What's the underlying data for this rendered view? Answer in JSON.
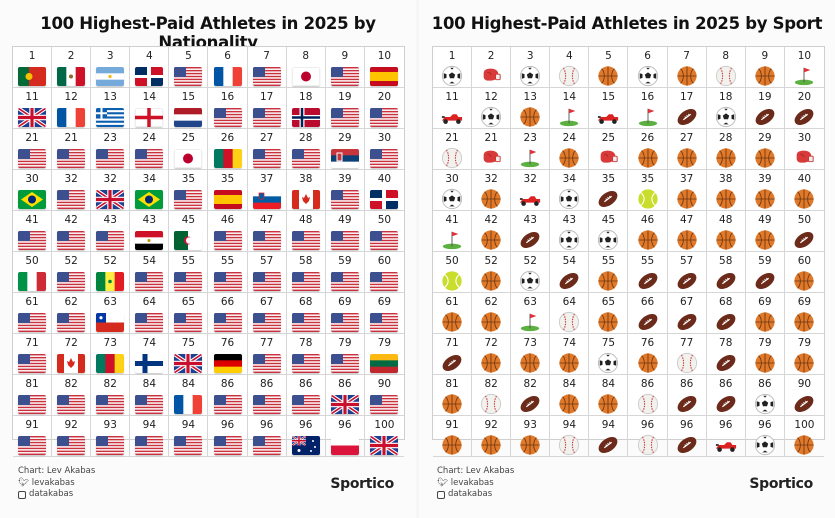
{
  "left": {
    "title": "100 Highest-Paid Athletes in 2025 by Nationality"
  },
  "right": {
    "title": "100 Highest-Paid Athletes in 2025 by Sport"
  },
  "footer": {
    "credit": "Chart: Lev Akabas",
    "twitter": "levakabas",
    "instagram": "datakabas",
    "logo": "Sportico"
  },
  "chart_data": [
    {
      "type": "table",
      "title": "100 Highest-Paid Athletes in 2025 by Nationality",
      "ranks": [
        1,
        2,
        3,
        4,
        5,
        6,
        7,
        8,
        9,
        10,
        11,
        12,
        13,
        14,
        15,
        16,
        17,
        18,
        19,
        20,
        21,
        21,
        23,
        24,
        25,
        26,
        27,
        28,
        29,
        30,
        30,
        32,
        32,
        34,
        35,
        35,
        37,
        38,
        39,
        40,
        41,
        42,
        43,
        43,
        45,
        46,
        47,
        48,
        49,
        50,
        50,
        52,
        52,
        54,
        55,
        55,
        57,
        58,
        59,
        60,
        61,
        62,
        63,
        64,
        65,
        66,
        67,
        68,
        69,
        69,
        71,
        72,
        73,
        74,
        75,
        76,
        77,
        78,
        79,
        79,
        81,
        82,
        82,
        84,
        84,
        86,
        86,
        86,
        86,
        90,
        91,
        92,
        93,
        94,
        94,
        96,
        96,
        96,
        96,
        100
      ],
      "nationality": [
        "PT",
        "MX",
        "AR",
        "DO",
        "US",
        "FR",
        "US",
        "JP",
        "US",
        "ES",
        "GB",
        "FR",
        "GR",
        "EN",
        "NL",
        "US",
        "US",
        "NO",
        "US",
        "US",
        "US",
        "US",
        "US",
        "US",
        "JP",
        "CM",
        "US",
        "US",
        "RS",
        "US",
        "BR",
        "US",
        "GB",
        "BR",
        "US",
        "ES",
        "SI",
        "CA",
        "US",
        "DO",
        "US",
        "US",
        "US",
        "EG",
        "DZ",
        "US",
        "US",
        "US",
        "US",
        "US",
        "IT",
        "US",
        "SN",
        "US",
        "US",
        "US",
        "US",
        "US",
        "US",
        "US",
        "US",
        "US",
        "CL",
        "US",
        "US",
        "US",
        "US",
        "US",
        "US",
        "US",
        "US",
        "CA",
        "CM",
        "FI",
        "GB",
        "DE",
        "US",
        "US",
        "US",
        "LT",
        "US",
        "US",
        "US",
        "US",
        "FR",
        "US",
        "US",
        "US",
        "GB",
        "US",
        "US",
        "US",
        "US",
        "US",
        "US",
        "US",
        "US",
        "AU",
        "PL",
        "GB"
      ]
    },
    {
      "type": "table",
      "title": "100 Highest-Paid Athletes in 2025 by Sport",
      "ranks": [
        1,
        2,
        3,
        4,
        5,
        6,
        7,
        8,
        9,
        10,
        11,
        12,
        13,
        14,
        15,
        16,
        17,
        18,
        19,
        20,
        21,
        21,
        23,
        24,
        25,
        26,
        27,
        28,
        29,
        30,
        30,
        32,
        32,
        34,
        35,
        35,
        37,
        38,
        39,
        40,
        41,
        42,
        43,
        43,
        45,
        46,
        47,
        48,
        49,
        50,
        50,
        52,
        52,
        54,
        55,
        55,
        57,
        58,
        59,
        60,
        61,
        62,
        63,
        64,
        65,
        66,
        67,
        68,
        69,
        69,
        71,
        72,
        73,
        74,
        75,
        76,
        77,
        78,
        79,
        79,
        81,
        82,
        82,
        84,
        84,
        86,
        86,
        86,
        86,
        90,
        91,
        92,
        93,
        94,
        94,
        96,
        96,
        96,
        96,
        100
      ],
      "sport": [
        "soccer",
        "boxing",
        "soccer",
        "baseball",
        "basketball",
        "soccer",
        "basketball",
        "baseball",
        "basketball",
        "golf",
        "racing",
        "soccer",
        "basketball",
        "golf",
        "racing",
        "golf",
        "football",
        "soccer",
        "football",
        "football",
        "baseball",
        "boxing",
        "golf",
        "basketball",
        "boxing",
        "basketball",
        "basketball",
        "basketball",
        "basketball",
        "boxing",
        "soccer",
        "basketball",
        "racing",
        "soccer",
        "football",
        "tennis",
        "basketball",
        "basketball",
        "basketball",
        "basketball",
        "golf",
        "basketball",
        "football",
        "soccer",
        "soccer",
        "basketball",
        "basketball",
        "basketball",
        "basketball",
        "football",
        "tennis",
        "basketball",
        "soccer",
        "football",
        "basketball",
        "football",
        "football",
        "football",
        "football",
        "basketball",
        "basketball",
        "basketball",
        "golf",
        "baseball",
        "basketball",
        "football",
        "football",
        "football",
        "basketball",
        "basketball",
        "football",
        "basketball",
        "basketball",
        "basketball",
        "soccer",
        "basketball",
        "baseball",
        "football",
        "basketball",
        "basketball",
        "basketball",
        "baseball",
        "football",
        "basketball",
        "basketball",
        "baseball",
        "football",
        "football",
        "soccer",
        "football",
        "basketball",
        "basketball",
        "basketball",
        "baseball",
        "football",
        "baseball",
        "football",
        "racing",
        "soccer",
        "basketball"
      ]
    }
  ]
}
